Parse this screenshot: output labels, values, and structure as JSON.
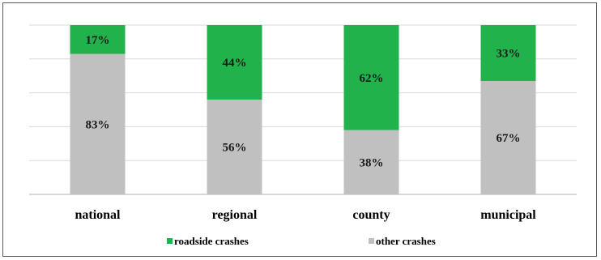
{
  "chart_data": {
    "type": "bar",
    "stacked": true,
    "percent_stacked": true,
    "categories": [
      "national",
      "regional",
      "county",
      "municipal"
    ],
    "series": [
      {
        "name": "other crashes",
        "values": [
          83,
          56,
          38,
          67
        ],
        "labels": [
          "83%",
          "56%",
          "38%",
          "67%"
        ],
        "color": "#c0c0c0"
      },
      {
        "name": "roadside crashes",
        "values": [
          17,
          44,
          62,
          33
        ],
        "labels": [
          "17%",
          "44%",
          "62%",
          "33%"
        ],
        "color": "#21b24b"
      }
    ],
    "ylim": [
      0,
      100
    ],
    "grid": true,
    "legend_position": "bottom",
    "legend": [
      {
        "name": "roadside crashes",
        "color": "#21b24b"
      },
      {
        "name": "other crashes",
        "color": "#c0c0c0"
      }
    ]
  }
}
